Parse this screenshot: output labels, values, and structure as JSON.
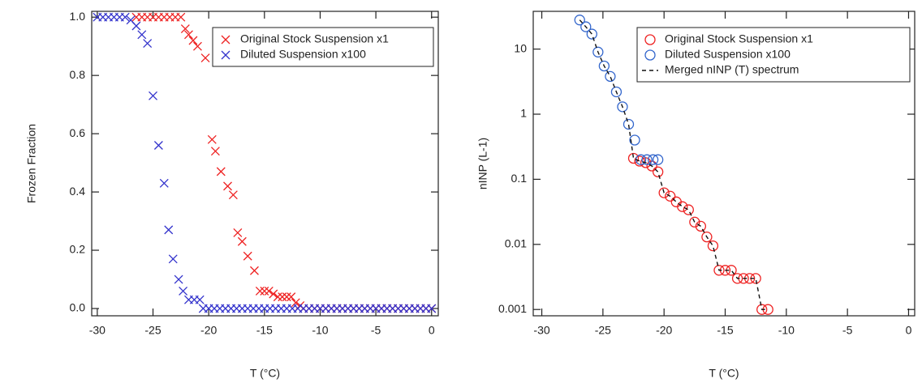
{
  "chart_data": [
    {
      "type": "scatter",
      "ylabel": "Frozen Fraction",
      "xlabel": "T (°C)",
      "xlim": [
        -30.5,
        0.6
      ],
      "ylim": [
        -0.025,
        1.02
      ],
      "xticks": [
        -30,
        -25,
        -20,
        -15,
        -10,
        -5,
        0
      ],
      "yticks": [
        {
          "value": 0,
          "label": "0.0"
        },
        0.2,
        0.4,
        0.6,
        0.8,
        {
          "value": 1,
          "label": "1.0"
        }
      ],
      "legend": "upper right",
      "series": [
        {
          "name": "Original Stock Suspension x1",
          "color": "#ee2222",
          "marker": "x",
          "x": [
            -26.5,
            -26,
            -25.5,
            -25,
            -24.5,
            -24,
            -23.5,
            -23,
            -22.5,
            -22.1,
            -21.8,
            -21.4,
            -21.0,
            -20.3,
            -19.7,
            -19.4,
            -18.9,
            -18.3,
            -17.8,
            -17.4,
            -17.0,
            -16.5,
            -15.9,
            -15.4,
            -15.0,
            -14.6,
            -14.2,
            -13.8,
            -13.4,
            -13.0,
            -12.6,
            -12.2,
            -11.8,
            -11.5,
            -11,
            -10.5,
            -10,
            -9.5,
            -9,
            -8.5,
            -8,
            -7.5,
            -7,
            -6.5,
            -6,
            -5.5,
            -5,
            -4.5,
            -4,
            -3.5,
            -3,
            -2.5,
            -2,
            -1.5,
            -1,
            -0.5,
            0
          ],
          "values": [
            1,
            1,
            1,
            1,
            1,
            1,
            1,
            1,
            1,
            0.96,
            0.94,
            0.92,
            0.9,
            0.86,
            0.58,
            0.54,
            0.47,
            0.42,
            0.39,
            0.26,
            0.23,
            0.18,
            0.13,
            0.06,
            0.06,
            0.06,
            0.05,
            0.04,
            0.04,
            0.04,
            0.04,
            0.02,
            0.01,
            0,
            0,
            0,
            0,
            0,
            0,
            0,
            0,
            0,
            0,
            0,
            0,
            0,
            0,
            0,
            0,
            0,
            0,
            0,
            0,
            0,
            0,
            0,
            0
          ]
        },
        {
          "name": "Diluted Suspension x100",
          "color": "#3333cc",
          "marker": "x",
          "x": [
            -30,
            -29.5,
            -29,
            -28.5,
            -28,
            -27.5,
            -27,
            -26.5,
            -26,
            -25.5,
            -25,
            -24.5,
            -24,
            -23.6,
            -23.2,
            -22.7,
            -22.3,
            -21.8,
            -21.3,
            -20.8,
            -20.5,
            -20,
            -19.5,
            -19,
            -18.5,
            -18,
            -17.5,
            -17,
            -16.5,
            -16,
            -15.5,
            -15,
            -14.5,
            -14,
            -13.5,
            -13,
            -12.5,
            -12,
            -11.5,
            -11,
            -10.5,
            -10,
            -9.5,
            -9,
            -8.5,
            -8,
            -7.5,
            -7,
            -6.5,
            -6,
            -5.5,
            -5,
            -4.5,
            -4,
            -3.5,
            -3,
            -2.5,
            -2,
            -1.5,
            -1,
            -0.5,
            0
          ],
          "values": [
            1,
            1,
            1,
            1,
            1,
            1,
            0.99,
            0.97,
            0.94,
            0.91,
            0.73,
            0.56,
            0.43,
            0.27,
            0.17,
            0.1,
            0.06,
            0.03,
            0.03,
            0.03,
            0,
            0,
            0,
            0,
            0,
            0,
            0,
            0,
            0,
            0,
            0,
            0,
            0,
            0,
            0,
            0,
            0,
            0,
            0,
            0,
            0,
            0,
            0,
            0,
            0,
            0,
            0,
            0,
            0,
            0,
            0,
            0,
            0,
            0,
            0,
            0,
            0,
            0,
            0,
            0,
            0,
            0
          ]
        }
      ]
    },
    {
      "type": "scatter",
      "ylabel": "nINP (L-1)",
      "xlabel": "T (°C)",
      "log_y": true,
      "xlim": [
        -30.7,
        0.5
      ],
      "ylim": [
        0.0008,
        38
      ],
      "xticks": [
        -30,
        -25,
        -20,
        -15,
        -10,
        -5,
        0
      ],
      "yticks": [
        0.001,
        0.01,
        0.1,
        1,
        10
      ],
      "legend": "upper right",
      "series": [
        {
          "name": "Original Stock Suspension x1",
          "color": "#ee2222",
          "marker": "circle",
          "x": [
            -22.5,
            -22.0,
            -21.5,
            -21.0,
            -20.5,
            -20,
            -19.5,
            -19,
            -18.5,
            -18,
            -17.5,
            -17,
            -16.5,
            -16,
            -15.5,
            -15,
            -14.5,
            -14,
            -13.5,
            -13,
            -12.5,
            -12,
            -11.5
          ],
          "values": [
            0.21,
            0.19,
            0.18,
            0.16,
            0.13,
            0.062,
            0.055,
            0.045,
            0.038,
            0.034,
            0.022,
            0.019,
            0.013,
            0.0095,
            0.004,
            0.004,
            0.004,
            0.003,
            0.003,
            0.003,
            0.003,
            0.001,
            0.001
          ]
        },
        {
          "name": "Diluted Suspension x100",
          "color": "#3366cc",
          "marker": "circle",
          "x": [
            -26.9,
            -26.4,
            -25.9,
            -25.4,
            -24.9,
            -24.4,
            -23.9,
            -23.4,
            -22.9,
            -22.4,
            -21.9,
            -21.4,
            -20.9,
            -20.5
          ],
          "values": [
            28,
            22,
            17,
            9,
            5.5,
            3.8,
            2.2,
            1.3,
            0.7,
            0.4,
            0.2,
            0.2,
            0.2,
            0.2
          ]
        },
        {
          "name": "Merged nINP (T) spectrum",
          "color": "#111111",
          "marker": "none",
          "line": "dashed",
          "x": [
            -26.9,
            -26.4,
            -25.9,
            -25.4,
            -24.9,
            -24.4,
            -23.9,
            -23.4,
            -22.9,
            -22.5,
            -22.0,
            -21.5,
            -21.0,
            -20.5,
            -20,
            -19.5,
            -19,
            -18.5,
            -18,
            -17.5,
            -17,
            -16.5,
            -16,
            -15.5,
            -15,
            -14.5,
            -14,
            -13.5,
            -13,
            -12.5,
            -12,
            -11.5
          ],
          "values": [
            28,
            22,
            17,
            9,
            5.5,
            3.8,
            2.2,
            1.3,
            0.7,
            0.21,
            0.19,
            0.18,
            0.16,
            0.13,
            0.062,
            0.055,
            0.045,
            0.038,
            0.034,
            0.022,
            0.019,
            0.013,
            0.0095,
            0.004,
            0.004,
            0.004,
            0.003,
            0.003,
            0.003,
            0.003,
            0.001,
            0.001
          ]
        }
      ]
    }
  ]
}
